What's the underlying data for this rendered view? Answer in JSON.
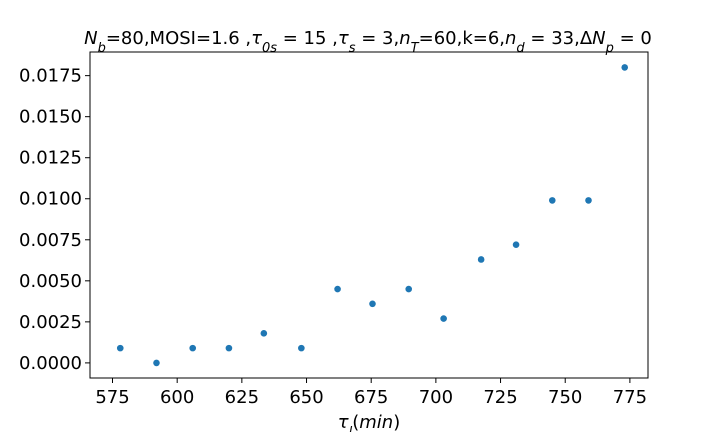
{
  "chart_data": {
    "type": "scatter",
    "title": "N_b=80,MOSI=1.6 ,τ_0s = 15 ,τ_s = 3,n_T=60,k=6,n_d = 33,ΔN_p = 0",
    "title_parts": [
      {
        "t": "N",
        "i": true
      },
      {
        "t": "b",
        "sub": true,
        "i": true
      },
      {
        "t": "=80,MOSI=1.6 ,"
      },
      {
        "t": "τ",
        "i": true
      },
      {
        "t": "0s",
        "sub": true,
        "i": true
      },
      {
        "t": " = 15 ,"
      },
      {
        "t": "τ",
        "i": true
      },
      {
        "t": "s",
        "sub": true,
        "i": true
      },
      {
        "t": " = 3,"
      },
      {
        "t": "n",
        "i": true
      },
      {
        "t": "T",
        "sub": true,
        "i": true
      },
      {
        "t": "=60,k=6,"
      },
      {
        "t": "n",
        "i": true
      },
      {
        "t": "d",
        "sub": true,
        "i": true
      },
      {
        "t": " = 33,Δ"
      },
      {
        "t": "N",
        "i": true
      },
      {
        "t": "p",
        "sub": true,
        "i": true
      },
      {
        "t": " = 0"
      }
    ],
    "xlabel": "τ_l(min)",
    "xlabel_parts": [
      {
        "t": "τ",
        "i": true
      },
      {
        "t": "l",
        "sub": true,
        "i": true
      },
      {
        "t": "(",
        "i": false
      },
      {
        "t": "min",
        "i": true
      },
      {
        "t": ")",
        "i": false
      }
    ],
    "ylabel": "",
    "xlim": [
      566.3,
      782.0
    ],
    "ylim": [
      -0.00092,
      0.01894
    ],
    "xticks": [
      575,
      600,
      625,
      650,
      675,
      700,
      725,
      750,
      775
    ],
    "yticks": [
      0.0,
      0.0025,
      0.005,
      0.0075,
      0.01,
      0.0125,
      0.015,
      0.0175
    ],
    "ytick_labels": [
      "0.0000",
      "0.0025",
      "0.0050",
      "0.0075",
      "0.0100",
      "0.0125",
      "0.0150",
      "0.0175"
    ],
    "marker_color": "#1f77b4",
    "grid": false,
    "x": [
      578,
      592,
      606,
      620,
      633.5,
      648,
      662,
      675.5,
      689.5,
      703,
      717.5,
      731,
      745,
      759,
      773
    ],
    "y": [
      0.0009,
      0.0,
      0.0009,
      0.0009,
      0.0018,
      0.0009,
      0.0045,
      0.0036,
      0.0045,
      0.0027,
      0.0063,
      0.0072,
      0.0099,
      0.0099,
      0.018
    ]
  }
}
